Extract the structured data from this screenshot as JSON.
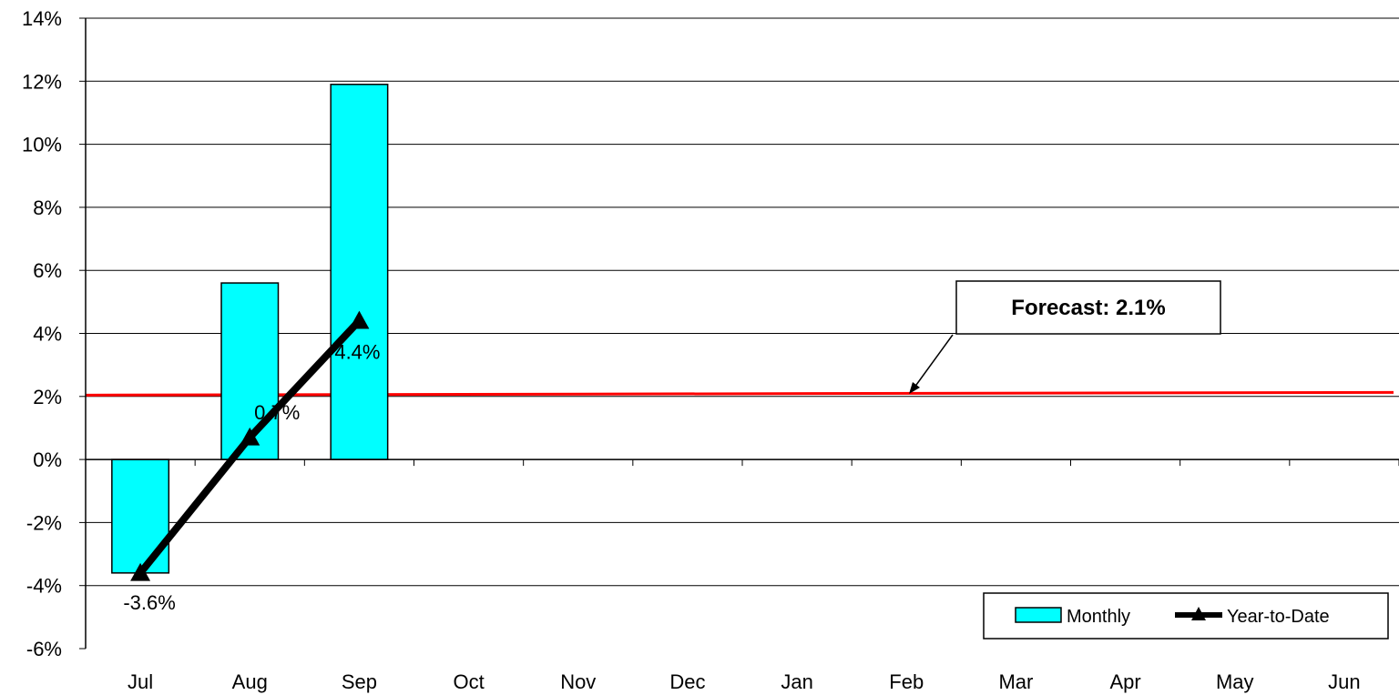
{
  "chart_data": {
    "type": "bar",
    "categories": [
      "Jul",
      "Aug",
      "Sep",
      "Oct",
      "Nov",
      "Dec",
      "Jan",
      "Feb",
      "Mar",
      "Apr",
      "May",
      "Jun"
    ],
    "series": [
      {
        "name": "Monthly",
        "type": "bar",
        "values": [
          -3.6,
          5.6,
          11.9,
          null,
          null,
          null,
          null,
          null,
          null,
          null,
          null,
          null
        ],
        "color": "#00FFFF"
      },
      {
        "name": "Year-to-Date",
        "type": "line",
        "values": [
          -3.6,
          0.7,
          4.4,
          null,
          null,
          null,
          null,
          null,
          null,
          null,
          null,
          null
        ],
        "color": "#000000",
        "data_labels": [
          "-3.6%",
          "0.7%",
          "4.4%"
        ]
      }
    ],
    "reference_line": {
      "value": 2.1,
      "label": "Forecast: 2.1%",
      "color": "#FF0000"
    },
    "ylim": [
      -6,
      14
    ],
    "yticks": [
      -6,
      -4,
      -2,
      0,
      2,
      4,
      6,
      8,
      10,
      12,
      14
    ],
    "ytick_labels": [
      "-6%",
      "-4%",
      "-2%",
      "0%",
      "2%",
      "4%",
      "6%",
      "8%",
      "10%",
      "12%",
      "14%"
    ],
    "title": "",
    "xlabel": "",
    "ylabel": "",
    "grid": true,
    "legend_position": "bottom-right"
  }
}
